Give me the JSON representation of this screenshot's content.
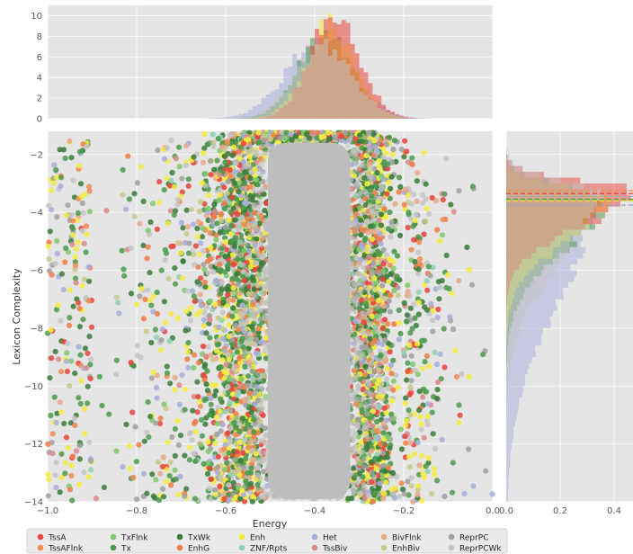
{
  "chart_data": {
    "type": "scatter",
    "xlabel": "Energy",
    "ylabel": "Lexicon Complexity",
    "xlim": [
      -1.0,
      0.0
    ],
    "ylim": [
      -14,
      -1.2
    ],
    "x_ticks": [
      -1.0,
      -0.8,
      -0.6,
      -0.4,
      -0.2,
      0.0
    ],
    "x_tick_labels": [
      "−1.0",
      "−0.8",
      "−0.6",
      "−0.4",
      "−0.2",
      "0.0"
    ],
    "y_ticks": [
      -2,
      -4,
      -6,
      -8,
      -10,
      -12,
      -14
    ],
    "y_tick_labels": [
      "−2",
      "−4",
      "−6",
      "−8",
      "−10",
      "−12",
      "−14"
    ],
    "grid": true,
    "top_hist": {
      "ylim": [
        0,
        11
      ],
      "y_ticks": [
        0,
        2,
        4,
        6,
        8,
        10
      ],
      "y_tick_labels": [
        "0",
        "2",
        "4",
        "6",
        "8",
        "10"
      ]
    },
    "right_hist": {
      "xlim": [
        0,
        0.47
      ],
      "x_ticks": [
        0.0,
        0.2,
        0.4
      ],
      "x_tick_labels": [
        "0.0",
        "0.2",
        "0.4"
      ]
    },
    "mean_lines": [
      {
        "color": "#e8453c",
        "value": -3.35
      },
      {
        "color": "#f08b52",
        "value": -3.25
      },
      {
        "color": "#4c9a4c",
        "value": -3.55
      },
      {
        "color": "#f0e040",
        "value": -3.6
      },
      {
        "color": "#9aa6cc",
        "value": -3.75
      },
      {
        "color": "#b0b0b0",
        "value": -3.45
      }
    ],
    "legend_position": "bottom",
    "series": [
      {
        "name": "TssA",
        "color": "#e8453c"
      },
      {
        "name": "TssAFlnk",
        "color": "#f08b52"
      },
      {
        "name": "TxFlnk",
        "color": "#7fc96b"
      },
      {
        "name": "Tx",
        "color": "#4c9a4c"
      },
      {
        "name": "TxWk",
        "color": "#3a7d3a"
      },
      {
        "name": "EnhG",
        "color": "#ee7d45"
      },
      {
        "name": "Enh",
        "color": "#f4ec3e"
      },
      {
        "name": "ZNF/Rpts",
        "color": "#8fd0b4"
      },
      {
        "name": "Het",
        "color": "#a7addc"
      },
      {
        "name": "TssBiv",
        "color": "#d98a8a"
      },
      {
        "name": "BivFlnk",
        "color": "#e8a88a"
      },
      {
        "name": "EnhBiv",
        "color": "#c9c98c"
      },
      {
        "name": "ReprPC",
        "color": "#a0a0a0"
      },
      {
        "name": "ReprPCWk",
        "color": "#c4c4c4"
      }
    ]
  }
}
